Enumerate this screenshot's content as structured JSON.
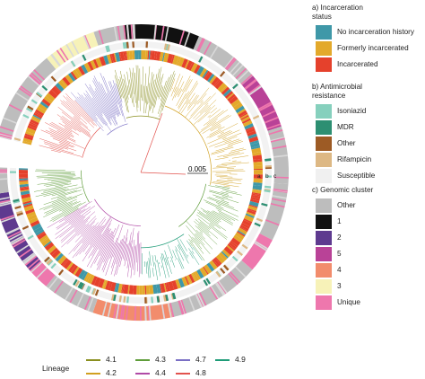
{
  "scale_bar_label": "0.005",
  "ring_labels": [
    "a",
    "b",
    "c"
  ],
  "legend": {
    "incarceration": {
      "title": "a) Incarceration\nstatus",
      "items": [
        {
          "label": "No incarceration history",
          "color": "#3f98a8"
        },
        {
          "label": "Formerly incarcerated",
          "color": "#e3a92b"
        },
        {
          "label": "Incarcerated",
          "color": "#e5412c"
        }
      ]
    },
    "resistance": {
      "title": "b) Antimicrobial\nresistance",
      "items": [
        {
          "label": "Isoniazid",
          "color": "#86d0bd"
        },
        {
          "label": "MDR",
          "color": "#2d8f72"
        },
        {
          "label": "Other",
          "color": "#9d5b25"
        },
        {
          "label": "Rifampicin",
          "color": "#ddb884"
        },
        {
          "label": "Susceptible",
          "color": "#f0f0f0"
        }
      ]
    },
    "cluster": {
      "title": "c) Genomic cluster",
      "items": [
        {
          "label": "Other",
          "color": "#bdbdbd"
        },
        {
          "label": "1",
          "color": "#111111"
        },
        {
          "label": "2",
          "color": "#5e3a8f"
        },
        {
          "label": "5",
          "color": "#b94297"
        },
        {
          "label": "4",
          "color": "#f28c6c"
        },
        {
          "label": "3",
          "color": "#f7f2b8"
        },
        {
          "label": "Unique",
          "color": "#ee77ad"
        }
      ]
    }
  },
  "lineage": {
    "title": "Lineage",
    "items": [
      {
        "label": "4.1",
        "color": "#8a8f1f"
      },
      {
        "label": "4.2",
        "color": "#d1a020"
      },
      {
        "label": "4.3",
        "color": "#5f9d3a"
      },
      {
        "label": "4.4",
        "color": "#b04aa6"
      },
      {
        "label": "4.7",
        "color": "#7a6fc4"
      },
      {
        "label": "4.8",
        "color": "#e2534e"
      },
      {
        "label": "4.9",
        "color": "#1f9c78"
      }
    ]
  }
}
